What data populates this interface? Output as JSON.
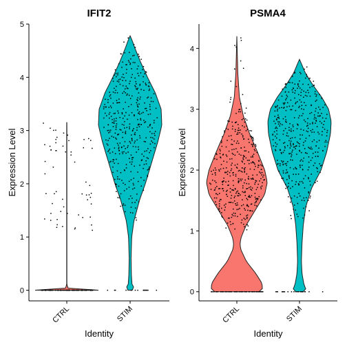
{
  "chart_data": [
    {
      "type": "violin",
      "title": "IFIT2",
      "xlabel": "Identity",
      "ylabel": "Expression Level",
      "categories": [
        "CTRL",
        "STIM"
      ],
      "ylim": [
        -0.2,
        5
      ],
      "yticks": [
        0,
        1,
        2,
        3,
        4,
        5
      ],
      "fill_colors": {
        "CTRL": "#F8766D",
        "STIM": "#00BFC4"
      },
      "series": [
        {
          "category": "CTRL",
          "max": 3.15,
          "density": [
            [
              0,
              1.0
            ],
            [
              0.03,
              0.05
            ],
            [
              0.1,
              0.004
            ],
            [
              0.5,
              0.004
            ],
            [
              1.0,
              0.004
            ],
            [
              1.5,
              0.004
            ],
            [
              2.0,
              0.004
            ],
            [
              2.5,
              0.004
            ],
            [
              3.0,
              0.004
            ],
            [
              3.15,
              0.003
            ]
          ],
          "nonzero_points_range": [
            1.1,
            3.15
          ],
          "nonzero_points_mode": 1.8
        },
        {
          "category": "STIM",
          "max": 4.78,
          "density": [
            [
              0,
              0.07
            ],
            [
              0.05,
              0.12
            ],
            [
              0.1,
              0.06
            ],
            [
              0.3,
              0.04
            ],
            [
              0.6,
              0.03
            ],
            [
              1.0,
              0.05
            ],
            [
              1.3,
              0.12
            ],
            [
              1.7,
              0.3
            ],
            [
              2.0,
              0.48
            ],
            [
              2.4,
              0.68
            ],
            [
              2.8,
              0.88
            ],
            [
              3.1,
              1.0
            ],
            [
              3.4,
              0.98
            ],
            [
              3.7,
              0.8
            ],
            [
              4.0,
              0.55
            ],
            [
              4.3,
              0.32
            ],
            [
              4.55,
              0.15
            ],
            [
              4.7,
              0.06
            ],
            [
              4.78,
              0.0
            ]
          ],
          "nonzero_points_range": [
            1.3,
            4.78
          ],
          "nonzero_points_mode": 3.1
        }
      ]
    },
    {
      "type": "violin",
      "title": "PSMA4",
      "xlabel": "Identity",
      "ylabel": "Expression Level",
      "categories": [
        "CTRL",
        "STIM"
      ],
      "ylim": [
        -0.15,
        4.4
      ],
      "yticks": [
        0,
        1,
        2,
        3,
        4
      ],
      "fill_colors": {
        "CTRL": "#F8766D",
        "STIM": "#00BFC4"
      },
      "series": [
        {
          "category": "CTRL",
          "max": 4.2,
          "density": [
            [
              0,
              0.7
            ],
            [
              0.06,
              0.82
            ],
            [
              0.15,
              0.78
            ],
            [
              0.3,
              0.6
            ],
            [
              0.5,
              0.3
            ],
            [
              0.7,
              0.12
            ],
            [
              0.8,
              0.1
            ],
            [
              0.9,
              0.14
            ],
            [
              1.1,
              0.3
            ],
            [
              1.4,
              0.65
            ],
            [
              1.6,
              0.88
            ],
            [
              1.8,
              0.96
            ],
            [
              2.0,
              0.88
            ],
            [
              2.3,
              0.65
            ],
            [
              2.6,
              0.4
            ],
            [
              2.9,
              0.2
            ],
            [
              3.2,
              0.08
            ],
            [
              3.6,
              0.03
            ],
            [
              4.0,
              0.01
            ],
            [
              4.2,
              0.0
            ]
          ],
          "nonzero_points_range": [
            1.0,
            4.2
          ],
          "nonzero_points_mode": 1.8
        },
        {
          "category": "STIM",
          "max": 3.82,
          "density": [
            [
              0,
              0.12
            ],
            [
              0.05,
              0.2
            ],
            [
              0.12,
              0.14
            ],
            [
              0.3,
              0.08
            ],
            [
              0.5,
              0.06
            ],
            [
              0.8,
              0.08
            ],
            [
              1.1,
              0.12
            ],
            [
              1.4,
              0.2
            ],
            [
              1.7,
              0.38
            ],
            [
              2.0,
              0.68
            ],
            [
              2.3,
              0.86
            ],
            [
              2.6,
              0.98
            ],
            [
              2.8,
              1.0
            ],
            [
              3.0,
              0.92
            ],
            [
              3.2,
              0.7
            ],
            [
              3.4,
              0.42
            ],
            [
              3.6,
              0.18
            ],
            [
              3.75,
              0.06
            ],
            [
              3.82,
              0.0
            ]
          ],
          "nonzero_points_range": [
            1.2,
            3.8
          ],
          "nonzero_points_mode": 2.6
        }
      ]
    }
  ]
}
